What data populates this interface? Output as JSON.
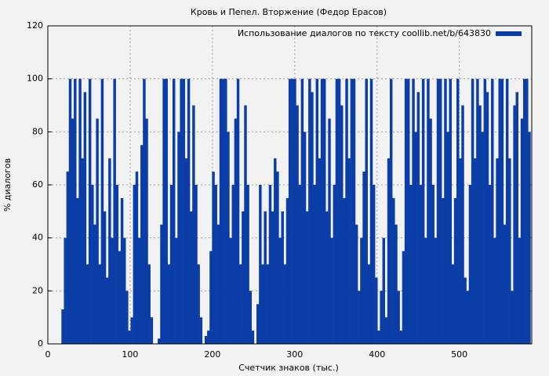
{
  "chart_data": {
    "type": "bar",
    "title": "Кровь и Пепел. Вторжение (Федор Ерасов)",
    "x_label": "Счетчик знаков (тыс.)",
    "y_label": "% диалогов",
    "x": [
      18,
      21,
      24,
      27,
      30,
      33,
      36,
      39,
      42,
      45,
      48,
      51,
      54,
      57,
      60,
      63,
      66,
      69,
      72,
      75,
      78,
      81,
      84,
      87,
      90,
      93,
      96,
      99,
      102,
      105,
      108,
      111,
      114,
      117,
      120,
      123,
      126,
      129,
      132,
      135,
      138,
      141,
      144,
      147,
      150,
      153,
      156,
      159,
      162,
      165,
      168,
      171,
      174,
      177,
      180,
      183,
      186,
      189,
      192,
      195,
      198,
      201,
      204,
      207,
      210,
      213,
      216,
      219,
      222,
      225,
      228,
      231,
      234,
      237,
      240,
      243,
      246,
      249,
      252,
      255,
      258,
      261,
      264,
      267,
      270,
      273,
      276,
      279,
      282,
      285,
      288,
      291,
      294,
      297,
      300,
      303,
      306,
      309,
      312,
      315,
      318,
      321,
      324,
      327,
      330,
      333,
      336,
      339,
      342,
      345,
      348,
      351,
      354,
      357,
      360,
      363,
      366,
      369,
      372,
      375,
      378,
      381,
      384,
      387,
      390,
      393,
      396,
      399,
      402,
      405,
      408,
      411,
      414,
      417,
      420,
      423,
      426,
      429,
      432,
      435,
      438,
      441,
      444,
      447,
      450,
      453,
      456,
      459,
      462,
      465,
      468,
      471,
      474,
      477,
      480,
      483,
      486,
      489,
      492,
      495,
      498,
      501,
      504,
      507,
      510,
      513,
      516,
      519,
      522,
      525,
      528,
      531,
      534,
      537,
      540,
      543,
      546,
      549,
      552,
      555,
      558,
      561,
      564,
      567,
      570,
      573,
      576,
      579,
      582,
      585
    ],
    "series": [
      {
        "name": "Использование диалогов по тексту coollib.net/b/643830",
        "color": "#0a3ea6",
        "values": [
          13,
          40,
          65,
          100,
          85,
          100,
          55,
          100,
          70,
          95,
          30,
          100,
          60,
          45,
          85,
          30,
          100,
          50,
          25,
          70,
          40,
          100,
          60,
          35,
          55,
          40,
          20,
          5,
          10,
          60,
          65,
          40,
          75,
          100,
          85,
          30,
          10,
          0,
          0,
          2,
          45,
          100,
          100,
          30,
          60,
          100,
          40,
          80,
          100,
          100,
          70,
          100,
          50,
          90,
          60,
          30,
          10,
          0,
          3,
          5,
          35,
          65,
          60,
          45,
          100,
          100,
          100,
          80,
          40,
          60,
          85,
          100,
          30,
          50,
          90,
          60,
          20,
          5,
          0,
          15,
          60,
          30,
          50,
          30,
          60,
          50,
          70,
          65,
          40,
          50,
          30,
          55,
          100,
          100,
          100,
          90,
          60,
          100,
          80,
          50,
          100,
          95,
          60,
          100,
          70,
          100,
          100,
          50,
          85,
          40,
          60,
          100,
          100,
          90,
          55,
          100,
          70,
          100,
          100,
          45,
          20,
          40,
          65,
          100,
          30,
          100,
          60,
          25,
          5,
          20,
          40,
          10,
          70,
          100,
          55,
          45,
          20,
          5,
          35,
          100,
          100,
          60,
          100,
          80,
          95,
          60,
          100,
          40,
          100,
          85,
          60,
          40,
          100,
          100,
          55,
          100,
          80,
          100,
          30,
          55,
          100,
          70,
          90,
          25,
          20,
          60,
          100,
          70,
          100,
          90,
          80,
          100,
          95,
          60,
          100,
          40,
          70,
          100,
          100,
          45,
          100,
          70,
          20,
          90,
          95,
          40,
          85,
          100,
          100,
          80
        ]
      }
    ],
    "xlim": [
      0,
      588
    ],
    "ylim": [
      0,
      120
    ],
    "xticks": [
      0,
      100,
      200,
      300,
      400,
      500
    ],
    "yticks": [
      0,
      20,
      40,
      60,
      80,
      100,
      120
    ],
    "grid": true,
    "legend": "top-right"
  }
}
